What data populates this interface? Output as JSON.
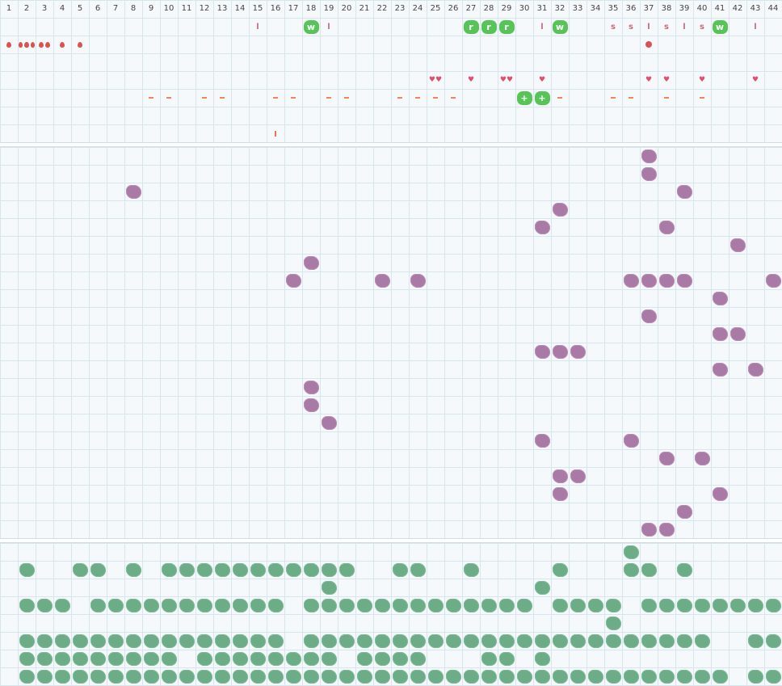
{
  "columns": [
    "1",
    "2",
    "3",
    "4",
    "5",
    "6",
    "7",
    "8",
    "9",
    "10",
    "11",
    "12",
    "13",
    "14",
    "15",
    "16",
    "17",
    "18",
    "19",
    "20",
    "21",
    "22",
    "23",
    "24",
    "25",
    "26",
    "27",
    "28",
    "29",
    "30",
    "31",
    "32",
    "33",
    "34",
    "35",
    "36",
    "37",
    "38",
    "39",
    "40",
    "41",
    "42",
    "43",
    "44"
  ],
  "colors": {
    "purple": "#a97aa5",
    "green": "#6cad88",
    "token": "#56c456",
    "tick_l": "#c07080",
    "tick_s": "#c86b78",
    "heart": "#e0506e",
    "drop": "#d9534f",
    "dash": "#e88a55"
  },
  "top": {
    "tokens": [
      {
        "col": 18,
        "label": "w"
      },
      {
        "col": 27,
        "label": "r"
      },
      {
        "col": 28,
        "label": "r"
      },
      {
        "col": 29,
        "label": "r"
      },
      {
        "col": 32,
        "label": "w"
      },
      {
        "col": 41,
        "label": "w"
      }
    ],
    "letters": [
      {
        "col": 15,
        "label": "l"
      },
      {
        "col": 19,
        "label": "l"
      },
      {
        "col": 31,
        "label": "l"
      },
      {
        "col": 35,
        "label": "s"
      },
      {
        "col": 36,
        "label": "s"
      },
      {
        "col": 37,
        "label": "l"
      },
      {
        "col": 38,
        "label": "s"
      },
      {
        "col": 39,
        "label": "l"
      },
      {
        "col": 40,
        "label": "s"
      },
      {
        "col": 43,
        "label": "l"
      }
    ],
    "drops": [
      {
        "col": 1,
        "n": 1
      },
      {
        "col": 2,
        "n": 3
      },
      {
        "col": 3,
        "n": 2
      },
      {
        "col": 4,
        "n": 1
      },
      {
        "col": 5,
        "n": 1
      }
    ],
    "dot_col": 37,
    "hearts": [
      {
        "col": 25,
        "label": "♥♥"
      },
      {
        "col": 27,
        "label": "♥"
      },
      {
        "col": 29,
        "label": "♥♥"
      },
      {
        "col": 31,
        "label": "♥"
      },
      {
        "col": 37,
        "label": "♥"
      },
      {
        "col": 38,
        "label": "♥"
      },
      {
        "col": 40,
        "label": "♥"
      },
      {
        "col": 43,
        "label": "♥"
      }
    ],
    "dashes": [
      9,
      10,
      12,
      13,
      16,
      17,
      19,
      20,
      23,
      24,
      25,
      26,
      32,
      35,
      36,
      38,
      40
    ],
    "plus_tokens": [
      {
        "col": 30,
        "label": "+"
      },
      {
        "col": 31,
        "label": "+"
      }
    ],
    "tick_col": 16
  },
  "purple_cells": [
    [
      37,
      0
    ],
    [
      37,
      1
    ],
    [
      8,
      2
    ],
    [
      39,
      2
    ],
    [
      32,
      3
    ],
    [
      31,
      4
    ],
    [
      38,
      4
    ],
    [
      42,
      5
    ],
    [
      18,
      6
    ],
    [
      17,
      7
    ],
    [
      22,
      7
    ],
    [
      24,
      7
    ],
    [
      36,
      7
    ],
    [
      37,
      7
    ],
    [
      38,
      7
    ],
    [
      39,
      7
    ],
    [
      44,
      7
    ],
    [
      41,
      8
    ],
    [
      37,
      9
    ],
    [
      41,
      10
    ],
    [
      42,
      10
    ],
    [
      31,
      11
    ],
    [
      32,
      11
    ],
    [
      33,
      11
    ],
    [
      41,
      12
    ],
    [
      43,
      12
    ],
    [
      18,
      13
    ],
    [
      18,
      14
    ],
    [
      19,
      15
    ],
    [
      31,
      16
    ],
    [
      36,
      16
    ],
    [
      38,
      17
    ],
    [
      40,
      17
    ],
    [
      32,
      18
    ],
    [
      33,
      18
    ],
    [
      32,
      19
    ],
    [
      41,
      19
    ],
    [
      39,
      20
    ],
    [
      37,
      21
    ],
    [
      38,
      21
    ]
  ],
  "green_rows": [
    {
      "row": 0,
      "cols": [
        36
      ]
    },
    {
      "row": 1,
      "cols": [
        2,
        5,
        6,
        8,
        10,
        11,
        12,
        13,
        14,
        15,
        16,
        17,
        18,
        19,
        20,
        23,
        24,
        27,
        32,
        36,
        37,
        39
      ]
    },
    {
      "row": 2,
      "cols": [
        19,
        31
      ]
    },
    {
      "row": 3,
      "cols": [
        2,
        3,
        4,
        6,
        7,
        8,
        9,
        10,
        11,
        12,
        13,
        14,
        15,
        16,
        18,
        19,
        20,
        21,
        22,
        23,
        24,
        25,
        26,
        27,
        28,
        29,
        30,
        32,
        33,
        34,
        35,
        37,
        38,
        39,
        40,
        41,
        42,
        43,
        44
      ]
    },
    {
      "row": 4,
      "cols": [
        35
      ]
    },
    {
      "row": 5,
      "cols": [
        2,
        3,
        4,
        5,
        6,
        7,
        8,
        9,
        10,
        11,
        12,
        13,
        14,
        15,
        16,
        18,
        19,
        20,
        21,
        22,
        23,
        24,
        25,
        26,
        27,
        28,
        29,
        30,
        31,
        32,
        33,
        34,
        35,
        36,
        37,
        38,
        39,
        40,
        43,
        44
      ]
    },
    {
      "row": 6,
      "cols": [
        2,
        3,
        4,
        5,
        6,
        7,
        8,
        9,
        10,
        12,
        13,
        14,
        15,
        16,
        17,
        18,
        19,
        21,
        22,
        23,
        24,
        28,
        29,
        31
      ]
    },
    {
      "row": 7,
      "cols": [
        2,
        3,
        4,
        5,
        6,
        7,
        8,
        9,
        10,
        11,
        12,
        13,
        14,
        15,
        16,
        17,
        18,
        19,
        20,
        21,
        22,
        23,
        24,
        25,
        26,
        27,
        28,
        29,
        30,
        31,
        32,
        33,
        34,
        35,
        36,
        37,
        38,
        39,
        40,
        41,
        43,
        44
      ]
    }
  ]
}
